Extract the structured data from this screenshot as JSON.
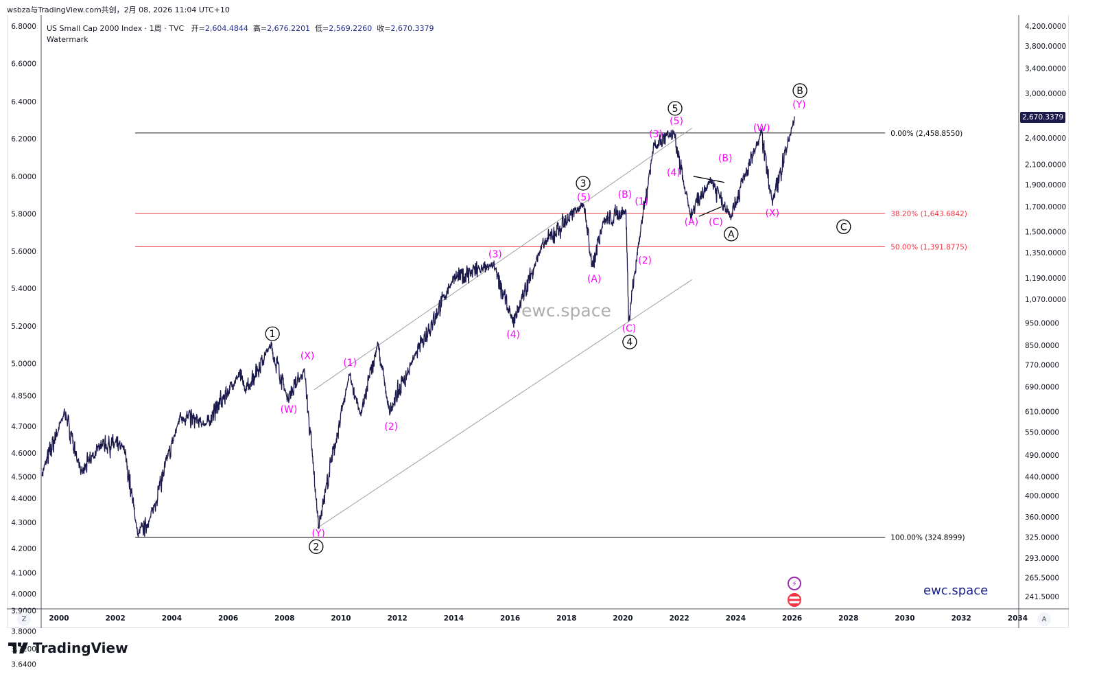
{
  "credit": "wsbza与TradingView.com共创，2月 08, 2026 11:04 UTC+10",
  "legend": {
    "symbol": "US Small Cap 2000 Index · 1周 · TVC",
    "open_label": "开=",
    "open": "2,604.4844",
    "high_label": "高=",
    "high": "2,676.2201",
    "low_label": "低=",
    "low": "2,569.2260",
    "close_label": "收=",
    "close": "2,670.3379",
    "watermark_label": "Watermark"
  },
  "last_price_tag": "2,670.3379",
  "watermark_text": "ewc.space",
  "brand_text": "ewc.space",
  "logo_text": "TradingView",
  "z_button": "Z",
  "a_button": "A",
  "colors": {
    "price": "#1c1a4d",
    "wave_minor": "#ff00ff",
    "wave_major": "#000000",
    "fib_mid": "#f23645",
    "fib_edge": "#000000",
    "channel": "#9e9e9e"
  },
  "chart_data": {
    "type": "line",
    "title": "US Small Cap 2000 Index · 1周 · TVC",
    "y_scale": "log",
    "ylim": [
      241.5,
      4200
    ],
    "xlim": [
      1999.4,
      2034.0
    ],
    "x_ticks": [
      "2000",
      "2002",
      "2004",
      "2006",
      "2008",
      "2010",
      "2012",
      "2014",
      "2016",
      "2018",
      "2020",
      "2022",
      "2024",
      "2026",
      "2028",
      "2030",
      "2032",
      "2034"
    ],
    "y_ticks_right": [
      4200,
      3800,
      3400,
      3000,
      2400,
      2100,
      1900,
      1700,
      1500,
      1350,
      1190,
      1070,
      950,
      850,
      770,
      690,
      610,
      550,
      490,
      440,
      400,
      360,
      325,
      293,
      265.5,
      241.5
    ],
    "y_tick_labels_right": [
      "4,200.0000",
      "3,800.0000",
      "3,400.0000",
      "3,000.0000",
      "2,400.0000",
      "2,100.0000",
      "1,900.0000",
      "1,700.0000",
      "1,500.0000",
      "1,350.0000",
      "1,190.0000",
      "1,070.0000",
      "950.0000",
      "850.0000",
      "770.0000",
      "690.0000",
      "610.0000",
      "550.0000",
      "490.0000",
      "440.0000",
      "400.0000",
      "360.0000",
      "325.0000",
      "293.0000",
      "265.5000",
      "241.5000"
    ],
    "y_tick_labels_left": [
      "6.8000",
      "6.6000",
      "6.4000",
      "6.2000",
      "6.0000",
      "5.8000",
      "5.6000",
      "5.4000",
      "5.2000",
      "5.0000",
      "4.8500",
      "4.7000",
      "4.6000",
      "4.5000",
      "4.4000",
      "4.3000",
      "4.2000",
      "4.1000",
      "4.0000",
      "3.9000",
      "3.8000",
      "3.7200",
      "3.6400"
    ],
    "y_ticks_left_price": [
      4200,
      3480,
      2880,
      2390,
      1980,
      1640,
      1360,
      1130,
      935,
      775,
      660,
      566,
      495,
      440,
      395,
      350,
      307,
      272,
      245,
      225,
      203,
      186,
      172
    ],
    "series": [
      {
        "name": "US Small Cap 2000 Index",
        "points": [
          [
            1999.4,
            447
          ],
          [
            2000.2,
            609
          ],
          [
            2000.8,
            447
          ],
          [
            2001.5,
            520
          ],
          [
            2002.3,
            512
          ],
          [
            2002.8,
            328
          ],
          [
            2003.2,
            351
          ],
          [
            2004.3,
            598
          ],
          [
            2005.2,
            570
          ],
          [
            2006.4,
            736
          ],
          [
            2006.6,
            676
          ],
          [
            2007.5,
            852
          ],
          [
            2008.1,
            654
          ],
          [
            2008.7,
            748
          ],
          [
            2009.2,
            345
          ],
          [
            2010.3,
            736
          ],
          [
            2010.7,
            598
          ],
          [
            2011.3,
            858
          ],
          [
            2011.7,
            609
          ],
          [
            2012.7,
            825
          ],
          [
            2014.0,
            1190
          ],
          [
            2015.4,
            1268
          ],
          [
            2016.1,
            951
          ],
          [
            2017.1,
            1389
          ],
          [
            2018.6,
            1737
          ],
          [
            2018.9,
            1268
          ],
          [
            2019.3,
            1567
          ],
          [
            2020.1,
            1674
          ],
          [
            2020.2,
            968
          ],
          [
            2020.6,
            1487
          ],
          [
            2021.1,
            2325
          ],
          [
            2021.8,
            2440
          ],
          [
            2022.4,
            1620
          ],
          [
            2023.1,
            1958
          ],
          [
            2023.8,
            1620
          ],
          [
            2024.9,
            2458
          ],
          [
            2025.3,
            1737
          ],
          [
            2026.1,
            2670
          ]
        ]
      }
    ],
    "fib_levels": [
      {
        "label": "0.00% (2,458.8550)",
        "price": 2458.855,
        "color": "#000000"
      },
      {
        "label": "38.20% (1,643.6842)",
        "price": 1643.6842,
        "color": "#f23645"
      },
      {
        "label": "50.00% (1,391.8775)",
        "price": 1391.8775,
        "color": "#f23645"
      },
      {
        "label": "100.00% (324.8999)",
        "price": 324.8999,
        "color": "#000000"
      }
    ],
    "fib_range": [
      2002.7,
      2029.3
    ],
    "channel": [
      [
        [
          2009.05,
          680
        ],
        [
          2022.45,
          2520
        ]
      ],
      [
        [
          2009.15,
          340
        ],
        [
          2022.45,
          1180
        ]
      ]
    ],
    "triangle": [
      [
        [
          2022.5,
          1980
        ],
        [
          2023.6,
          1920
        ]
      ],
      [
        [
          2022.7,
          1620
        ],
        [
          2023.5,
          1700
        ]
      ]
    ],
    "wave_labels": [
      {
        "text": "1",
        "x": 2007.57,
        "y": 900,
        "circled": true
      },
      {
        "text": "2",
        "x": 2009.12,
        "y": 310,
        "circled": true
      },
      {
        "text": "3",
        "x": 2018.59,
        "y": 1912,
        "circled": true
      },
      {
        "text": "4",
        "x": 2020.24,
        "y": 864,
        "circled": true
      },
      {
        "text": "5",
        "x": 2021.85,
        "y": 2782,
        "circled": true
      },
      {
        "text": "A",
        "x": 2023.84,
        "y": 1483,
        "circled": true
      },
      {
        "text": "B",
        "x": 2026.28,
        "y": 3041,
        "circled": true
      },
      {
        "text": "C",
        "x": 2027.83,
        "y": 1538,
        "circled": true
      },
      {
        "text": "(X)",
        "x": 2008.81,
        "y": 807,
        "circled": false
      },
      {
        "text": "(W)",
        "x": 2008.15,
        "y": 617,
        "circled": false
      },
      {
        "text": "(Y)",
        "x": 2009.2,
        "y": 332,
        "circled": false
      },
      {
        "text": "(1)",
        "x": 2010.32,
        "y": 780,
        "circled": false
      },
      {
        "text": "(2)",
        "x": 2011.78,
        "y": 566,
        "circled": false
      },
      {
        "text": "(3)",
        "x": 2015.47,
        "y": 1341,
        "circled": false
      },
      {
        "text": "(4)",
        "x": 2016.11,
        "y": 897,
        "circled": false
      },
      {
        "text": "(5)",
        "x": 2018.61,
        "y": 1784,
        "circled": false
      },
      {
        "text": "(A)",
        "x": 2018.98,
        "y": 1186,
        "circled": false
      },
      {
        "text": "(B)",
        "x": 2020.07,
        "y": 1809,
        "circled": false
      },
      {
        "text": "(C)",
        "x": 2020.22,
        "y": 926,
        "circled": false
      },
      {
        "text": "(1)",
        "x": 2020.66,
        "y": 1749,
        "circled": false
      },
      {
        "text": "(2)",
        "x": 2020.78,
        "y": 1301,
        "circled": false
      },
      {
        "text": "(3)",
        "x": 2021.17,
        "y": 2448,
        "circled": false
      },
      {
        "text": "(5)",
        "x": 2021.9,
        "y": 2614,
        "circled": false
      },
      {
        "text": "(4)",
        "x": 2021.8,
        "y": 2020,
        "circled": false
      },
      {
        "text": "(A)",
        "x": 2022.43,
        "y": 1576,
        "circled": false
      },
      {
        "text": "(B)",
        "x": 2023.63,
        "y": 2171,
        "circled": false
      },
      {
        "text": "(C)",
        "x": 2023.82,
        "y": 1576,
        "circled": false
      },
      {
        "text": "(W)",
        "x": 2024.92,
        "y": 2525,
        "circled": false
      },
      {
        "text": "(X)",
        "x": 2025.3,
        "y": 1649,
        "circled": false
      },
      {
        "text": "(Y)",
        "x": 2026.25,
        "y": 2838,
        "circled": false
      }
    ]
  }
}
